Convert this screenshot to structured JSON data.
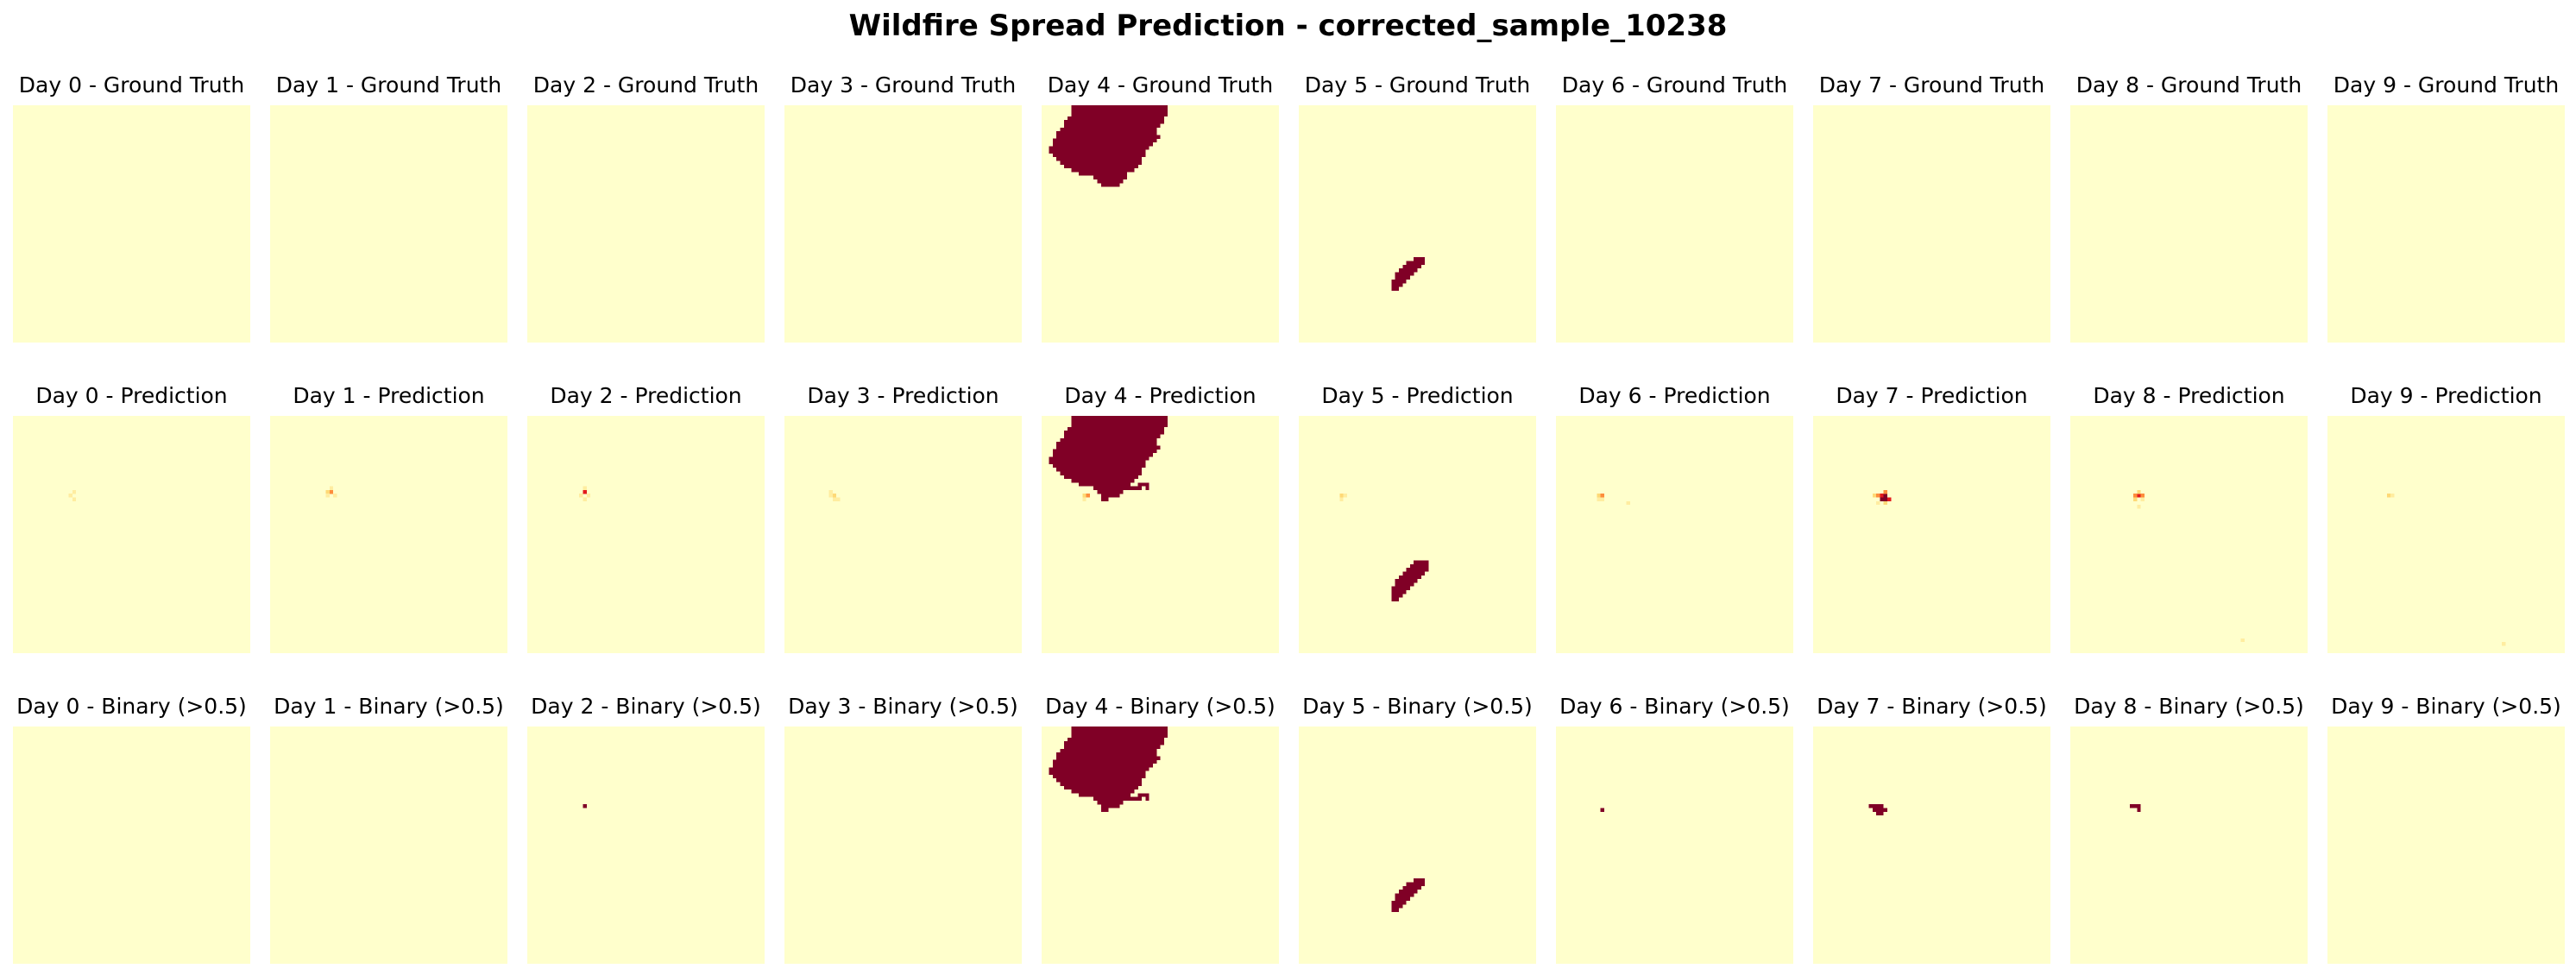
{
  "title": "Wildfire Spread Prediction - corrected_sample_10238",
  "colors": {
    "background": "#ffffcc",
    "fire": "#800026",
    "hot": "#e31a1c",
    "warm": "#fd8d3c",
    "mild": "#fed976",
    "faint": "#ffeda0"
  },
  "chart_data": {
    "type": "heatmap",
    "title": "Wildfire Spread Prediction - corrected_sample_10238",
    "colormap": "YlOrRd",
    "grid_size": 64,
    "rows": [
      "Ground Truth",
      "Prediction",
      "Binary (>0.5)"
    ],
    "days": [
      0,
      1,
      2,
      3,
      4,
      5,
      6,
      7,
      8,
      9
    ],
    "panel_titles": {
      "ground_truth": [
        "Day 0 - Ground Truth",
        "Day 1 - Ground Truth",
        "Day 2 - Ground Truth",
        "Day 3 - Ground Truth",
        "Day 4 - Ground Truth",
        "Day 5 - Ground Truth",
        "Day 6 - Ground Truth",
        "Day 7 - Ground Truth",
        "Day 8 - Ground Truth",
        "Day 9 - Ground Truth"
      ],
      "prediction": [
        "Day 0 - Prediction",
        "Day 1 - Prediction",
        "Day 2 - Prediction",
        "Day 3 - Prediction",
        "Day 4 - Prediction",
        "Day 5 - Prediction",
        "Day 6 - Prediction",
        "Day 7 - Prediction",
        "Day 8 - Prediction",
        "Day 9 - Prediction"
      ],
      "binary": [
        "Day 0 - Binary (>0.5)",
        "Day 1 - Binary (>0.5)",
        "Day 2 - Binary (>0.5)",
        "Day 3 - Binary (>0.5)",
        "Day 4 - Binary (>0.5)",
        "Day 5 - Binary (>0.5)",
        "Day 6 - Binary (>0.5)",
        "Day 7 - Binary (>0.5)",
        "Day 8 - Binary (>0.5)",
        "Day 9 - Binary (>0.5)"
      ]
    },
    "fire_regions": {
      "day4_ground_truth": {
        "rows": [
          0,
          25
        ],
        "cols": [
          6,
          33
        ]
      },
      "day5_ground_truth": {
        "rows": [
          41,
          49
        ],
        "cols": [
          25,
          34
        ]
      },
      "day5_prediction": {
        "rows": [
          39,
          49
        ],
        "cols": [
          25,
          34
        ]
      },
      "day7_prediction": {
        "center": [
          22,
          19
        ],
        "peak": 0.9
      },
      "day2_binary_pixel": [
        21,
        15
      ],
      "day6_binary_pixel": [
        22,
        12
      ],
      "day8_binary_pixel": [
        21,
        18
      ]
    },
    "xlabel": "",
    "ylabel": ""
  }
}
